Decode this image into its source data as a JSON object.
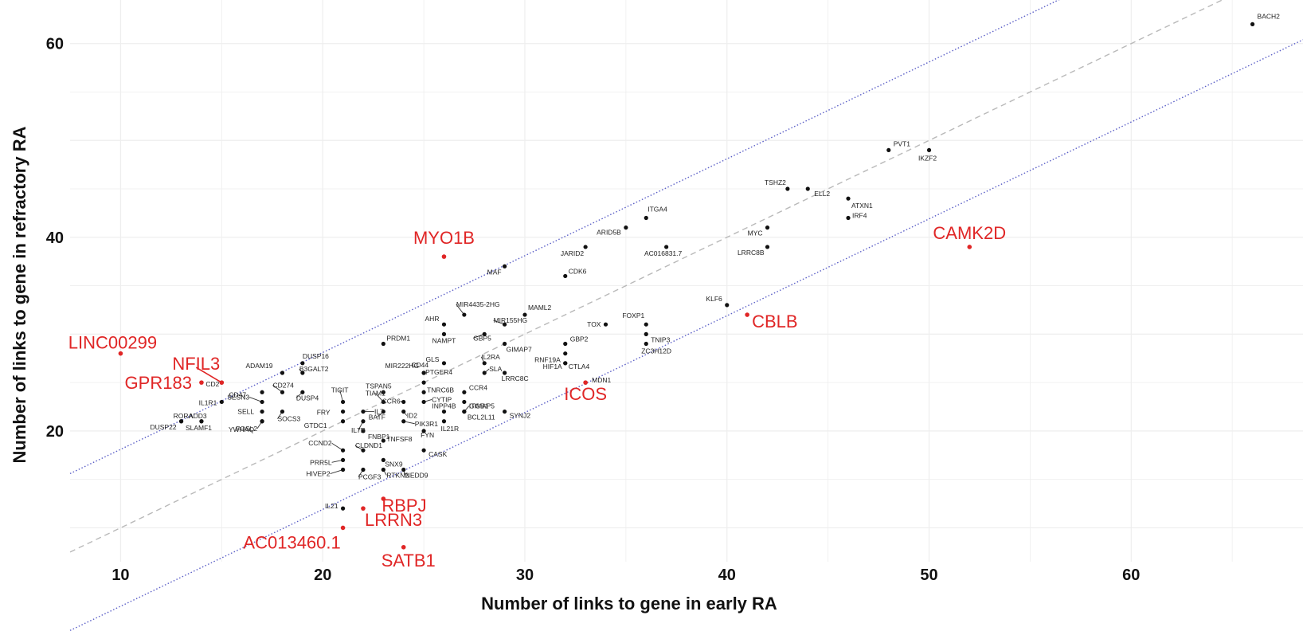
{
  "chart_data": {
    "type": "scatter",
    "xlabel": "Number of links to gene in early RA",
    "ylabel": "Number of links to gene in refractory RA",
    "xlim": [
      7.5,
      68.5
    ],
    "ylim": [
      6.5,
      64.5
    ],
    "xticks": [
      10,
      20,
      30,
      40,
      50,
      60
    ],
    "yticks": [
      20,
      40,
      60
    ],
    "grid": true,
    "colors": {
      "normal": "#111111",
      "highlight": "#e02626",
      "ref_line": "#b9b9b9",
      "band_line": "#5b5fc7",
      "grid": "#eeeeee"
    },
    "reference_lines": [
      {
        "style": "dashed",
        "intercept": 0,
        "slope": 1
      },
      {
        "style": "dotted",
        "intercept": 8.1,
        "slope": 1
      },
      {
        "style": "dotted",
        "intercept": -8.1,
        "slope": 1
      }
    ],
    "points": [
      {
        "label": "BACH2",
        "x": 66,
        "y": 62
      },
      {
        "label": "PVT1",
        "x": 48,
        "y": 49
      },
      {
        "label": "IKZF2",
        "x": 50,
        "y": 49
      },
      {
        "label": "TSHZ2",
        "x": 43,
        "y": 45
      },
      {
        "label": "ELL2",
        "x": 44,
        "y": 45
      },
      {
        "label": "ATXN1",
        "x": 46,
        "y": 44
      },
      {
        "label": "IRF4",
        "x": 46,
        "y": 42
      },
      {
        "label": "MYC",
        "x": 42,
        "y": 41
      },
      {
        "label": "LRRC8B",
        "x": 42,
        "y": 39
      },
      {
        "label": "ITGA4",
        "x": 36,
        "y": 42
      },
      {
        "label": "ARID5B",
        "x": 35,
        "y": 41
      },
      {
        "label": "JARID2",
        "x": 33,
        "y": 39
      },
      {
        "label": "AC016831.7",
        "x": 37,
        "y": 39
      },
      {
        "label": "CDK6",
        "x": 32,
        "y": 36
      },
      {
        "label": "MAF",
        "x": 29,
        "y": 37
      },
      {
        "label": "KLF6",
        "x": 40,
        "y": 33
      },
      {
        "label": "FOXP1",
        "x": 36,
        "y": 31
      },
      {
        "label": "TNIP3",
        "x": 36,
        "y": 30
      },
      {
        "label": "ZC3H12D",
        "x": 36,
        "y": 29
      },
      {
        "label": "TOX",
        "x": 34,
        "y": 31
      },
      {
        "label": "GBP2",
        "x": 32,
        "y": 29
      },
      {
        "label": "RNF19A",
        "x": 32,
        "y": 28
      },
      {
        "label": "HIF1A",
        "x": 32,
        "y": 27
      },
      {
        "label": "CTLA4",
        "x": 32,
        "y": 27
      },
      {
        "label": "MDN1",
        "x": 33,
        "y": 25
      },
      {
        "label": "MAML2",
        "x": 30,
        "y": 32
      },
      {
        "label": "MIR4435-2HG",
        "x": 27,
        "y": 32
      },
      {
        "label": "MIR155HG",
        "x": 29,
        "y": 31
      },
      {
        "label": "GBP5",
        "x": 28,
        "y": 30
      },
      {
        "label": "GIMAP7",
        "x": 29,
        "y": 29
      },
      {
        "label": "AHR",
        "x": 26,
        "y": 31
      },
      {
        "label": "NAMPT",
        "x": 26,
        "y": 30
      },
      {
        "label": "PRDM1",
        "x": 23,
        "y": 29
      },
      {
        "label": "GLS",
        "x": 26,
        "y": 27
      },
      {
        "label": "IL2RA",
        "x": 28,
        "y": 27
      },
      {
        "label": "SLA",
        "x": 28,
        "y": 26
      },
      {
        "label": "LRRC8C",
        "x": 29,
        "y": 26
      },
      {
        "label": "MIR222HG",
        "x": 25,
        "y": 26
      },
      {
        "label": "PTGER4",
        "x": 25,
        "y": 25
      },
      {
        "label": "CD44",
        "x": 25,
        "y": 26
      },
      {
        "label": "CCR4",
        "x": 27,
        "y": 24
      },
      {
        "label": "TNRC6B",
        "x": 25,
        "y": 24
      },
      {
        "label": "ITGB1",
        "x": 27,
        "y": 23
      },
      {
        "label": "CYTIP",
        "x": 25,
        "y": 23
      },
      {
        "label": "GIMAP5",
        "x": 27,
        "y": 22
      },
      {
        "label": "INPP4B",
        "x": 26,
        "y": 22
      },
      {
        "label": "BCL2L11",
        "x": 27,
        "y": 22
      },
      {
        "label": "SYNJ2",
        "x": 29,
        "y": 22
      },
      {
        "label": "IL21R",
        "x": 26,
        "y": 21
      },
      {
        "label": "CCR6",
        "x": 24,
        "y": 23
      },
      {
        "label": "ID2",
        "x": 24,
        "y": 22
      },
      {
        "label": "PIK3R1",
        "x": 24,
        "y": 21
      },
      {
        "label": "FYN",
        "x": 25,
        "y": 20
      },
      {
        "label": "TSPAN5",
        "x": 23,
        "y": 24
      },
      {
        "label": "TIAM1",
        "x": 23,
        "y": 23
      },
      {
        "label": "BATF",
        "x": 23,
        "y": 22
      },
      {
        "label": "IL7",
        "x": 22,
        "y": 22
      },
      {
        "label": "TIGIT",
        "x": 21,
        "y": 23
      },
      {
        "label": "FRY",
        "x": 21,
        "y": 22
      },
      {
        "label": "IL7R",
        "x": 22,
        "y": 21
      },
      {
        "label": "GTDC1",
        "x": 21,
        "y": 21
      },
      {
        "label": "FNBP1",
        "x": 22,
        "y": 20
      },
      {
        "label": "TNFSF8",
        "x": 23,
        "y": 19
      },
      {
        "label": "CCND2",
        "x": 21,
        "y": 18
      },
      {
        "label": "CLDND1",
        "x": 22,
        "y": 18
      },
      {
        "label": "PRR5L",
        "x": 21,
        "y": 17
      },
      {
        "label": "SNX9",
        "x": 23,
        "y": 17
      },
      {
        "label": "CASK",
        "x": 25,
        "y": 18
      },
      {
        "label": "HIVEP2",
        "x": 21,
        "y": 16
      },
      {
        "label": "PCGF3",
        "x": 22,
        "y": 16
      },
      {
        "label": "RTKN2",
        "x": 23,
        "y": 16
      },
      {
        "label": "NEDD9",
        "x": 24,
        "y": 16
      },
      {
        "label": "DUSP16",
        "x": 19,
        "y": 27
      },
      {
        "label": "ADAM19",
        "x": 18,
        "y": 26
      },
      {
        "label": "B3GALT2",
        "x": 19,
        "y": 26
      },
      {
        "label": "CD274",
        "x": 18,
        "y": 24
      },
      {
        "label": "DUSP4",
        "x": 19,
        "y": 24
      },
      {
        "label": "CD47",
        "x": 17,
        "y": 24
      },
      {
        "label": "CD2",
        "x": 15,
        "y": 25
      },
      {
        "label": "SESN3",
        "x": 17,
        "y": 23
      },
      {
        "label": "SOCS3",
        "x": 18,
        "y": 22
      },
      {
        "label": "SELL",
        "x": 17,
        "y": 22
      },
      {
        "label": "FOSL2",
        "x": 17,
        "y": 21
      },
      {
        "label": "IL1R1",
        "x": 15,
        "y": 23
      },
      {
        "label": "RORA",
        "x": 13,
        "y": 21
      },
      {
        "label": "ADD3",
        "x": 14,
        "y": 21
      },
      {
        "label": "DUSP22",
        "x": 13,
        "y": 21
      },
      {
        "label": "SLAMF1",
        "x": 14,
        "y": 21
      },
      {
        "label": "YWHAQ",
        "x": 17,
        "y": 21
      },
      {
        "label": "IL21",
        "x": 21,
        "y": 12
      },
      {
        "label": "MYO1B",
        "x": 26,
        "y": 38,
        "highlight": true
      },
      {
        "label": "CAMK2D",
        "x": 52,
        "y": 39,
        "highlight": true
      },
      {
        "label": "CBLB",
        "x": 41,
        "y": 32,
        "highlight": true
      },
      {
        "label": "LINC00299",
        "x": 10,
        "y": 28,
        "highlight": true
      },
      {
        "label": "NFIL3",
        "x": 15,
        "y": 25,
        "highlight": true
      },
      {
        "label": "GPR183",
        "x": 14,
        "y": 25,
        "highlight": true
      },
      {
        "label": "ICOS",
        "x": 33,
        "y": 25,
        "highlight": true
      },
      {
        "label": "RBPJ",
        "x": 23,
        "y": 13,
        "highlight": true
      },
      {
        "label": "LRRN3",
        "x": 22,
        "y": 12,
        "highlight": true
      },
      {
        "label": "AC013460.1",
        "x": 21,
        "y": 10,
        "highlight": true
      },
      {
        "label": "SATB1",
        "x": 24,
        "y": 8,
        "highlight": true
      }
    ]
  }
}
